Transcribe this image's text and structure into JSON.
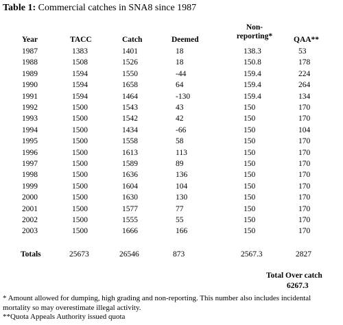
{
  "title": {
    "label": "Table 1:",
    "text": "Commercial catches in SNA8 since 1987"
  },
  "table": {
    "header": [
      "Year",
      "TACC",
      "Catch",
      "Deemed",
      "Non-reporting*",
      "QAA**"
    ],
    "rows": [
      [
        1987,
        1383,
        1401,
        18,
        138.3,
        53
      ],
      [
        1988,
        1508,
        1526,
        18,
        150.8,
        178
      ],
      [
        1989,
        1594,
        1550,
        -44,
        159.4,
        224
      ],
      [
        1990,
        1594,
        1658,
        64,
        159.4,
        264
      ],
      [
        1991,
        1594,
        1464,
        -130,
        159.4,
        134
      ],
      [
        1992,
        1500,
        1543,
        43,
        150,
        170
      ],
      [
        1993,
        1500,
        1542,
        42,
        150,
        170
      ],
      [
        1994,
        1500,
        1434,
        -66,
        150,
        104
      ],
      [
        1995,
        1500,
        1558,
        58,
        150,
        170
      ],
      [
        1996,
        1500,
        1613,
        113,
        150,
        170
      ],
      [
        1997,
        1500,
        1589,
        89,
        150,
        170
      ],
      [
        1998,
        1500,
        1636,
        136,
        150,
        170
      ],
      [
        1999,
        1500,
        1604,
        104,
        150,
        170
      ],
      [
        2000,
        1500,
        1630,
        130,
        150,
        170
      ],
      [
        2001,
        1500,
        1577,
        77,
        150,
        170
      ],
      [
        2002,
        1500,
        1555,
        55,
        150,
        170
      ],
      [
        2003,
        1500,
        1666,
        166,
        150,
        170
      ]
    ],
    "totals": [
      "Totals",
      25673,
      26546,
      873,
      2567.3,
      2827
    ]
  },
  "summary": {
    "label": "Total Over catch",
    "value": 6267.3
  },
  "footnotes": [
    "*   Amount allowed for dumping, high grading and non-reporting. This number also includes incidental mortality so may overestimate illegal activity.",
    "**Quota Appeals Authority issued quota"
  ]
}
